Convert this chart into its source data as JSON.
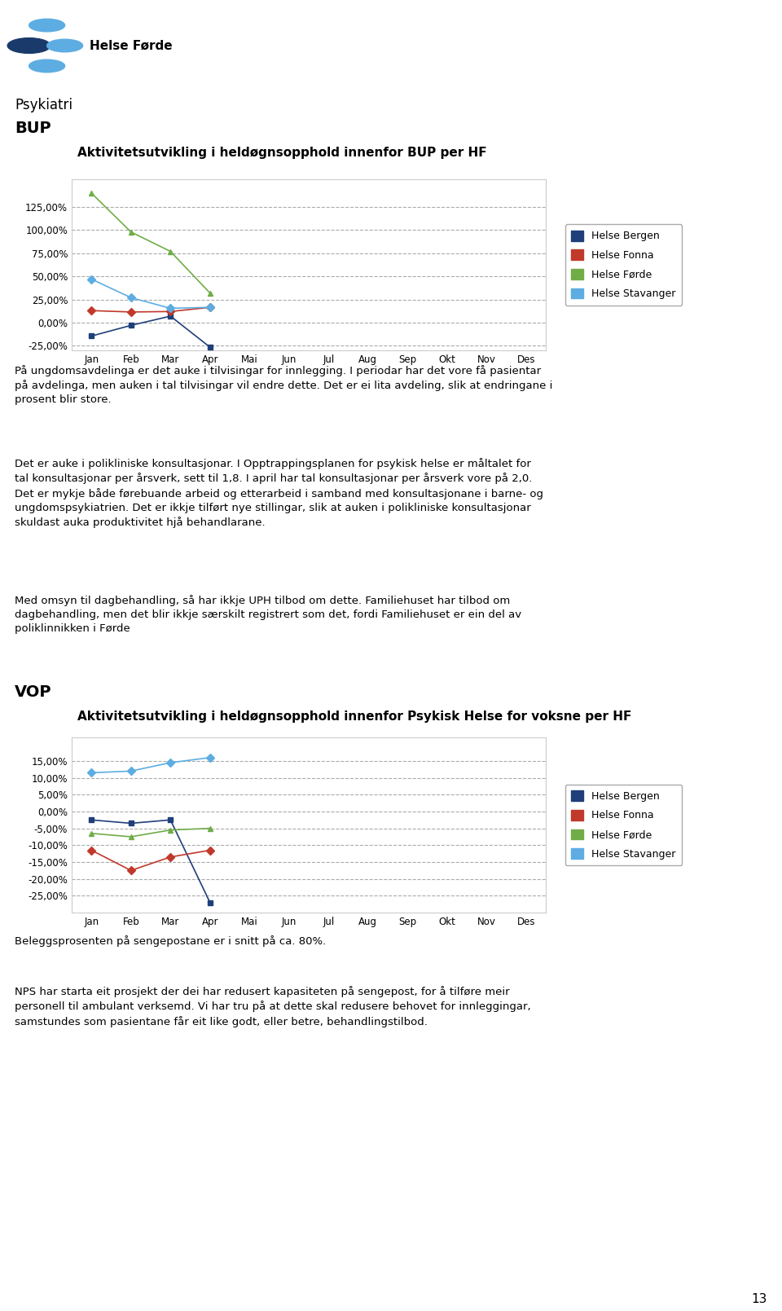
{
  "page_title": "Psykiatri",
  "page_subtitle": "BUP",
  "chart1_title": "Aktivitetsutvikling i heldøgnsopphold innenfor BUP per HF",
  "chart1_months": [
    "Jan",
    "Feb",
    "Mar",
    "Apr",
    "Mai",
    "Jun",
    "Jul",
    "Aug",
    "Sep",
    "Okt",
    "Nov",
    "Des"
  ],
  "chart1_ylim": [
    -0.3,
    1.55
  ],
  "chart1_yticks": [
    -0.25,
    0.0,
    0.25,
    0.5,
    0.75,
    1.0,
    1.25
  ],
  "chart1_ytick_labels": [
    "-25,00%",
    "0,00%",
    "25,00%",
    "50,00%",
    "75,00%",
    "100,00%",
    "125,00%"
  ],
  "chart1_series": {
    "Helse Bergen": {
      "color": "#1f3f7a",
      "marker": "s",
      "x": [
        1,
        2,
        3,
        4
      ],
      "y": [
        -0.145,
        -0.03,
        0.07,
        -0.265
      ]
    },
    "Helse Fonna": {
      "color": "#c0392b",
      "marker": "D",
      "x": [
        1,
        2,
        3,
        4
      ],
      "y": [
        0.13,
        0.115,
        0.12,
        0.165
      ]
    },
    "Helse Førde": {
      "color": "#70ad47",
      "marker": "^",
      "x": [
        1,
        2,
        3,
        4
      ],
      "y": [
        1.4,
        0.98,
        0.77,
        0.32
      ]
    },
    "Helse Stavanger": {
      "color": "#5dade2",
      "marker": "D",
      "x": [
        1,
        2,
        3,
        4
      ],
      "y": [
        0.47,
        0.27,
        0.155,
        0.165
      ]
    }
  },
  "text1": "På ungdomsavdelinga er det auke i tilvisingar for innlegging. I periodar har det vore få pasientar\npå avdelinga, men auken i tal tilvisingar vil endre dette. Det er ei lita avdeling, slik at endringane i\nprosent blir store.",
  "text2": "Det er auke i polikliniske konsultasjonar. I Opptrappingsplanen for psykisk helse er måltalet for\ntal konsultasjonar per årsverk, sett til 1,8. I april har tal konsultasjonar per årsverk vore på 2,0.\nDet er mykje både førebuande arbeid og etterarbeid i samband med konsultasjonane i barne- og\nungdomspsykiatrien. Det er ikkje tilført nye stillingar, slik at auken i polikliniske konsultasjonar\nskuldast auka produktivitet hjå behandlarane.",
  "text3": "Med omsyn til dagbehandling, så har ikkje UPH tilbod om dette. Familiehuset har tilbod om\ndagbehandling, men det blir ikkje særskilt registrert som det, fordi Familiehuset er ein del av\npoliklinnikken i Førde",
  "vop_title": "VOP",
  "chart2_title": "Aktivitetsutvikling i heldøgnsopphold innenfor Psykisk Helse for voksne per HF",
  "chart2_months": [
    "Jan",
    "Feb",
    "Mar",
    "Apr",
    "Mai",
    "Jun",
    "Jul",
    "Aug",
    "Sep",
    "Okt",
    "Nov",
    "Des"
  ],
  "chart2_ylim": [
    -0.3,
    0.22
  ],
  "chart2_yticks": [
    -0.25,
    -0.2,
    -0.15,
    -0.1,
    -0.05,
    0.0,
    0.05,
    0.1,
    0.15
  ],
  "chart2_ytick_labels": [
    "-25,00%",
    "-20,00%",
    "-15,00%",
    "-10,00%",
    "-5,00%",
    "0,00%",
    "5,00%",
    "10,00%",
    "15,00%"
  ],
  "chart2_series": {
    "Helse Bergen": {
      "color": "#1f3f7a",
      "marker": "s",
      "x": [
        1,
        2,
        3,
        4
      ],
      "y": [
        -0.025,
        -0.035,
        -0.025,
        -0.27
      ]
    },
    "Helse Fonna": {
      "color": "#c0392b",
      "marker": "D",
      "x": [
        1,
        2,
        3,
        4
      ],
      "y": [
        -0.115,
        -0.175,
        -0.135,
        -0.115
      ]
    },
    "Helse Førde": {
      "color": "#70ad47",
      "marker": "^",
      "x": [
        1,
        2,
        3,
        4
      ],
      "y": [
        -0.065,
        -0.075,
        -0.055,
        -0.05
      ]
    },
    "Helse Stavanger": {
      "color": "#5dade2",
      "marker": "D",
      "x": [
        1,
        2,
        3,
        4
      ],
      "y": [
        0.115,
        0.12,
        0.145,
        0.16
      ]
    }
  },
  "text4": "Beleggsprosenten på sengepostane er i snitt på ca. 80%.",
  "text5": "NPS har starta eit prosjekt der dei har redusert kapasiteten på sengepost, for å tilføre meir\npersonell til ambulant verksemd. Vi har tru på at dette skal redusere behovet for innleggingar,\nsamstundes som pasientane får eit like godt, eller betre, behandlingstilbod.",
  "page_number": "13",
  "legend_labels": [
    "Helse Bergen",
    "Helse Fonna",
    "Helse Førde",
    "Helse Stavanger"
  ],
  "legend_colors": [
    "#1f3f7a",
    "#c0392b",
    "#70ad47",
    "#5dade2"
  ],
  "logo_dark": "#1a3a6b",
  "logo_light": "#5dade2"
}
